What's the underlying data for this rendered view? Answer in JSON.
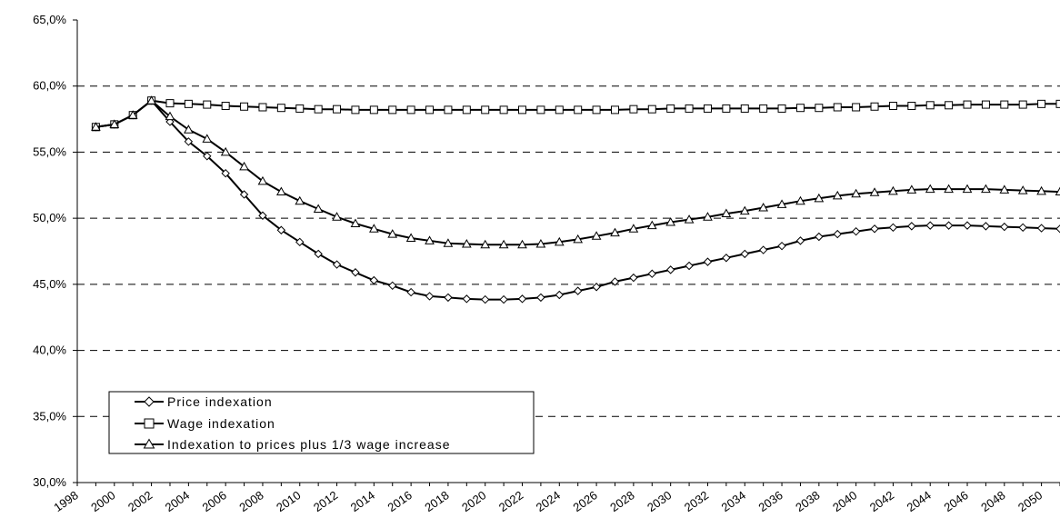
{
  "chart_data": {
    "type": "line",
    "title": "",
    "xlabel": "",
    "ylabel": "",
    "x": [
      1999,
      2000,
      2001,
      2002,
      2003,
      2004,
      2005,
      2006,
      2007,
      2008,
      2009,
      2010,
      2011,
      2012,
      2013,
      2014,
      2015,
      2016,
      2017,
      2018,
      2019,
      2020,
      2021,
      2022,
      2023,
      2024,
      2025,
      2026,
      2027,
      2028,
      2029,
      2030,
      2031,
      2032,
      2033,
      2034,
      2035,
      2036,
      2037,
      2038,
      2039,
      2040,
      2041,
      2042,
      2043,
      2044,
      2045,
      2046,
      2047,
      2048,
      2049,
      2050,
      2051
    ],
    "x_tick_labels": [
      "1998",
      "2000",
      "2002",
      "2004",
      "2006",
      "2008",
      "2010",
      "2012",
      "2014",
      "2016",
      "2018",
      "2020",
      "2022",
      "2024",
      "2026",
      "2028",
      "2030",
      "2032",
      "2034",
      "2036",
      "2038",
      "2040",
      "2042",
      "2044",
      "2046",
      "2048",
      "2050"
    ],
    "ylim": [
      30,
      65
    ],
    "y_tick_labels": [
      "30,0%",
      "35,0%",
      "40,0%",
      "45,0%",
      "50,0%",
      "55,0%",
      "60,0%",
      "65,0%"
    ],
    "grid": "horizontal-dashed",
    "legend_position": "bottom-left",
    "series": [
      {
        "name": "Price indexation",
        "marker": "diamond",
        "values": [
          56.9,
          57.1,
          57.8,
          58.9,
          57.3,
          55.8,
          54.7,
          53.4,
          51.8,
          50.2,
          49.1,
          48.2,
          47.3,
          46.5,
          45.9,
          45.3,
          44.9,
          44.4,
          44.1,
          44.0,
          43.9,
          43.85,
          43.85,
          43.9,
          44.0,
          44.2,
          44.5,
          44.8,
          45.2,
          45.5,
          45.8,
          46.1,
          46.4,
          46.7,
          47.0,
          47.3,
          47.6,
          47.9,
          48.3,
          48.6,
          48.8,
          49.0,
          49.2,
          49.3,
          49.4,
          49.45,
          49.45,
          49.45,
          49.4,
          49.35,
          49.3,
          49.25,
          49.2
        ]
      },
      {
        "name": "Wage indexation",
        "marker": "square",
        "values": [
          56.9,
          57.1,
          57.8,
          58.9,
          58.7,
          58.65,
          58.6,
          58.5,
          58.45,
          58.4,
          58.35,
          58.3,
          58.25,
          58.25,
          58.2,
          58.2,
          58.2,
          58.2,
          58.2,
          58.2,
          58.2,
          58.2,
          58.2,
          58.2,
          58.2,
          58.2,
          58.2,
          58.2,
          58.2,
          58.25,
          58.25,
          58.3,
          58.3,
          58.3,
          58.3,
          58.3,
          58.3,
          58.3,
          58.35,
          58.35,
          58.4,
          58.4,
          58.45,
          58.5,
          58.5,
          58.55,
          58.55,
          58.6,
          58.6,
          58.6,
          58.6,
          58.65,
          58.65
        ]
      },
      {
        "name": "Indexation to prices plus 1/3 wage increase",
        "marker": "triangle",
        "values": [
          56.9,
          57.1,
          57.8,
          58.9,
          57.7,
          56.7,
          56.0,
          55.0,
          53.9,
          52.8,
          52.0,
          51.3,
          50.7,
          50.1,
          49.6,
          49.2,
          48.8,
          48.5,
          48.3,
          48.1,
          48.05,
          48.0,
          48.0,
          48.0,
          48.05,
          48.2,
          48.4,
          48.65,
          48.9,
          49.2,
          49.45,
          49.7,
          49.9,
          50.1,
          50.35,
          50.55,
          50.8,
          51.05,
          51.3,
          51.5,
          51.7,
          51.85,
          51.95,
          52.05,
          52.15,
          52.2,
          52.2,
          52.2,
          52.2,
          52.15,
          52.1,
          52.05,
          52.0
        ]
      }
    ]
  }
}
